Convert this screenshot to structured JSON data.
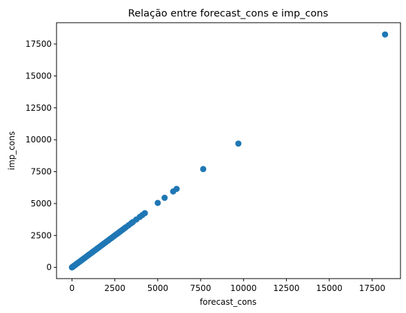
{
  "chart_data": {
    "type": "scatter",
    "title": "Relação entre forecast_cons e imp_cons",
    "xlabel": "forecast_cons",
    "ylabel": "imp_cons",
    "xlim": [
      -900,
      19150
    ],
    "ylim": [
      -880,
      19170
    ],
    "xticks": [
      0,
      2500,
      5000,
      7500,
      10000,
      12500,
      15000,
      17500
    ],
    "yticks": [
      0,
      2500,
      5000,
      7500,
      10000,
      12500,
      15000,
      17500
    ],
    "grid": false,
    "marker_color": "#1f77b4",
    "series": [
      {
        "x": [
          0,
          20,
          40,
          60,
          80,
          100,
          130,
          160,
          190,
          220,
          260,
          300,
          340,
          380,
          420,
          470,
          520,
          570,
          620,
          680,
          740,
          800,
          860,
          920,
          980,
          1040,
          1100,
          1170,
          1240,
          1310,
          1380,
          1450,
          1520,
          1590,
          1660,
          1730,
          1800,
          1870,
          1940,
          2010,
          2080,
          2150,
          2220,
          2290,
          2360,
          2430,
          2500,
          2570,
          2640,
          2710,
          2780,
          2850,
          2920,
          2990,
          3070,
          3150,
          3300,
          3450,
          3550,
          3750,
          3950,
          4100,
          4250,
          5000,
          5400,
          5900,
          6100,
          7650,
          9700,
          18250
        ],
        "y": [
          0,
          20,
          40,
          60,
          80,
          100,
          130,
          160,
          190,
          220,
          260,
          300,
          340,
          380,
          420,
          470,
          520,
          570,
          620,
          680,
          740,
          800,
          860,
          920,
          980,
          1040,
          1100,
          1170,
          1240,
          1310,
          1380,
          1450,
          1520,
          1590,
          1660,
          1730,
          1800,
          1870,
          1940,
          2010,
          2080,
          2150,
          2220,
          2290,
          2360,
          2430,
          2500,
          2570,
          2640,
          2710,
          2780,
          2850,
          2920,
          2990,
          3070,
          3150,
          3300,
          3450,
          3550,
          3750,
          3950,
          4100,
          4250,
          5050,
          5450,
          5950,
          6150,
          7700,
          9700,
          18250
        ]
      }
    ]
  }
}
